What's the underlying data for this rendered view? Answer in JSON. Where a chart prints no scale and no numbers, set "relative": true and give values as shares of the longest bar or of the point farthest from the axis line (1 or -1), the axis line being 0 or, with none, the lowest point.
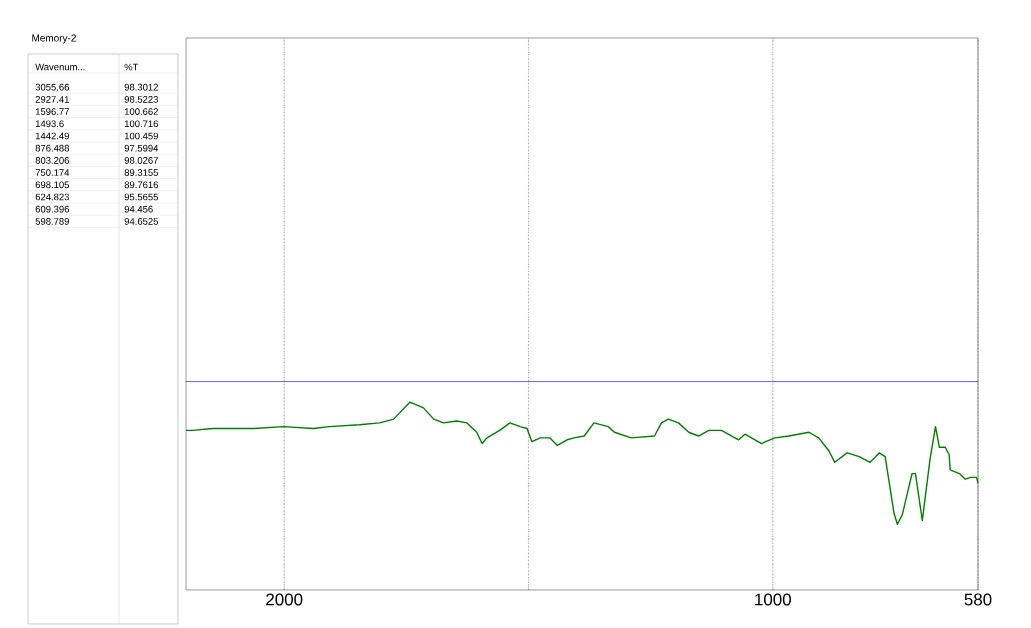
{
  "chart_data": [
    {
      "type": "other",
      "title": "Memory-2",
      "annotations": [
        "Wavenum...",
        "%T",
        "3055.66",
        "98.3012",
        "2927.41",
        "98.5223",
        "1596.77",
        "100.662",
        "1493.6",
        "100.716",
        "1442.49",
        "100.459",
        "876.488",
        "97.5994",
        "803.206",
        "98.0267",
        "750.174",
        "89.3155",
        "698.105",
        "89.7616",
        "624.823",
        "95.5655",
        "609.396",
        "94.456",
        "598.789",
        "94.6525"
      ]
    },
    {
      "type": "line",
      "relative": true,
      "color": "#008000",
      "grid": "x",
      "xlim": [
        2201,
        580
      ],
      "xticks": [
        2000,
        {
          "value": 1500,
          "label": null
        },
        1000,
        580
      ],
      "x": [
        2201,
        2187,
        2146,
        2064,
        2002,
        1940,
        1908,
        1846,
        1805,
        1776,
        1743,
        1733,
        1715,
        1694,
        1674,
        1647,
        1626,
        1606,
        1595,
        1585,
        1559,
        1538,
        1517,
        1503,
        1493,
        1476,
        1456,
        1441,
        1421,
        1407,
        1386,
        1366,
        1337,
        1324,
        1290,
        1242,
        1228,
        1214,
        1193,
        1172,
        1152,
        1131,
        1105,
        1070,
        1057,
        1023,
        996,
        967,
        926,
        906,
        885,
        873,
        848,
        823,
        801,
        782,
        770,
        752,
        745,
        735,
        715,
        708,
        694,
        678,
        667,
        659,
        647,
        639,
        637,
        618,
        606,
        595,
        583,
        580
      ],
      "values": [
        0.85,
        0.85,
        0.86,
        0.86,
        0.87,
        0.86,
        0.87,
        0.88,
        0.89,
        0.91,
        1.0,
        0.99,
        0.97,
        0.91,
        0.89,
        0.9,
        0.89,
        0.84,
        0.78,
        0.81,
        0.85,
        0.89,
        0.87,
        0.86,
        0.79,
        0.81,
        0.81,
        0.77,
        0.8,
        0.81,
        0.82,
        0.89,
        0.87,
        0.84,
        0.81,
        0.82,
        0.89,
        0.91,
        0.89,
        0.84,
        0.82,
        0.85,
        0.85,
        0.8,
        0.83,
        0.78,
        0.81,
        0.82,
        0.84,
        0.81,
        0.74,
        0.68,
        0.73,
        0.71,
        0.68,
        0.73,
        0.71,
        0.41,
        0.35,
        0.4,
        0.62,
        0.62,
        0.37,
        0.7,
        0.87,
        0.76,
        0.76,
        0.72,
        0.64,
        0.62,
        0.59,
        0.6,
        0.6,
        0.57
      ],
      "ref_lines": [
        {
          "axis": "y",
          "value": 1.11,
          "color": "#3344ee"
        }
      ]
    }
  ]
}
